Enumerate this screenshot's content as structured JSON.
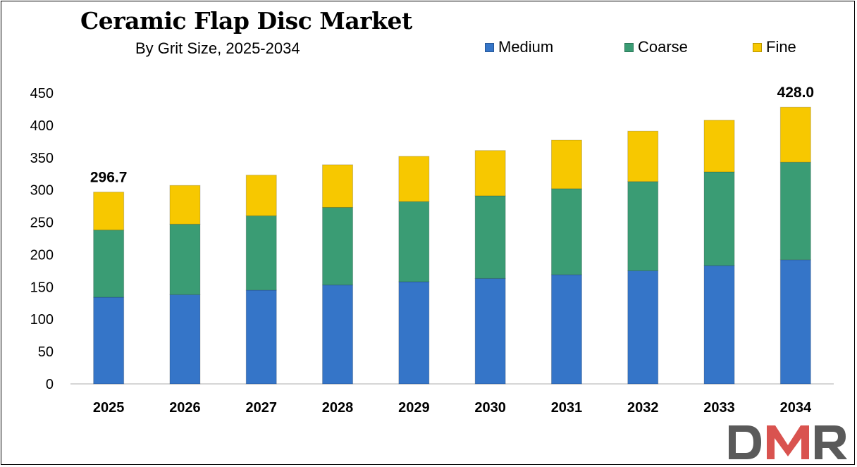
{
  "chart_data": {
    "type": "bar",
    "stacked": true,
    "title": "Ceramic Flap Disc Market",
    "subtitle": "By Grit Size, 2025-2034",
    "categories": [
      "2025",
      "2026",
      "2027",
      "2028",
      "2029",
      "2030",
      "2031",
      "2032",
      "2033",
      "2034"
    ],
    "series": [
      {
        "name": "Medium",
        "color": "#3575c8",
        "values": [
          134,
          138,
          145,
          153,
          158,
          163,
          169,
          175,
          183,
          192
        ]
      },
      {
        "name": "Coarse",
        "color": "#3a9c74",
        "values": [
          104,
          109,
          115,
          120,
          124,
          128,
          133,
          138,
          145,
          151
        ]
      },
      {
        "name": "Fine",
        "color": "#f7c800",
        "values": [
          58.7,
          60,
          63,
          66,
          70,
          70,
          75,
          78,
          80,
          85
        ]
      }
    ],
    "ylim": [
      0,
      450
    ],
    "yticks": [
      "0",
      "50",
      "100",
      "150",
      "200",
      "250",
      "300",
      "350",
      "400",
      "450"
    ],
    "data_labels": [
      {
        "category": "2025",
        "text": "296.7"
      },
      {
        "category": "2034",
        "text": "428.0"
      }
    ],
    "legend_position": "top-right",
    "grid": false
  },
  "logo": {
    "text": "DMR",
    "colors": [
      "#555555",
      "#d9534f"
    ]
  }
}
